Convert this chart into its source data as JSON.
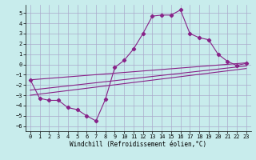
{
  "xlabel": "Windchill (Refroidissement éolien,°C)",
  "background_color": "#c8ecec",
  "grid_color": "#aaaacc",
  "line_color": "#882288",
  "x_ticks": [
    0,
    1,
    2,
    3,
    4,
    5,
    6,
    7,
    8,
    9,
    10,
    11,
    12,
    13,
    14,
    15,
    16,
    17,
    18,
    19,
    20,
    21,
    22,
    23
  ],
  "y_ticks": [
    -6,
    -5,
    -4,
    -3,
    -2,
    -1,
    0,
    1,
    2,
    3,
    4,
    5
  ],
  "ylim": [
    -6.5,
    5.8
  ],
  "xlim": [
    -0.5,
    23.5
  ],
  "main_line": {
    "x": [
      0,
      1,
      2,
      3,
      4,
      5,
      6,
      7,
      8,
      9,
      10,
      11,
      12,
      13,
      14,
      15,
      16,
      17,
      18,
      19,
      20,
      21,
      22,
      23
    ],
    "y": [
      -1.5,
      -3.3,
      -3.5,
      -3.5,
      -4.2,
      -4.4,
      -5.0,
      -5.5,
      -3.4,
      -0.3,
      0.4,
      1.5,
      3.0,
      4.7,
      4.8,
      4.8,
      5.3,
      3.0,
      2.6,
      2.4,
      1.0,
      0.3,
      -0.1,
      0.1
    ]
  },
  "trend_lines": [
    {
      "x": [
        0,
        23
      ],
      "y": [
        -1.5,
        0.15
      ]
    },
    {
      "x": [
        0,
        23
      ],
      "y": [
        -2.5,
        -0.15
      ]
    },
    {
      "x": [
        0,
        23
      ],
      "y": [
        -3.0,
        -0.4
      ]
    }
  ],
  "font_family": "monospace",
  "tick_fontsize": 5.0,
  "xlabel_fontsize": 5.5,
  "linewidth": 0.8,
  "markersize": 2.2
}
